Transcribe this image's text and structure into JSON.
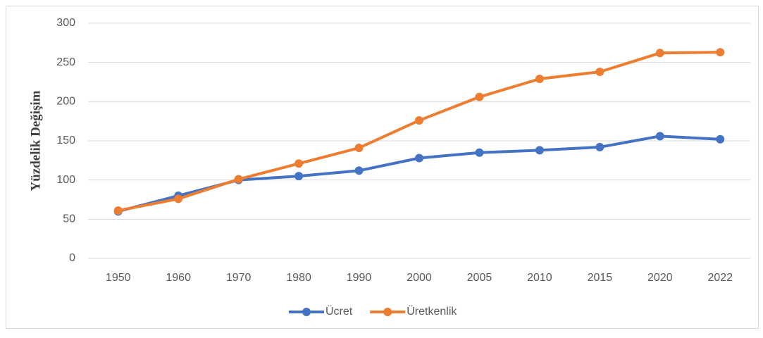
{
  "chart_data": {
    "type": "line",
    "y_label": "Yüzdelik Değişim",
    "categories": [
      "1950",
      "1960",
      "1970",
      "1980",
      "1990",
      "2000",
      "2005",
      "2010",
      "2015",
      "2020",
      "2022"
    ],
    "series": [
      {
        "name": "Ücret",
        "color": "#4472c4",
        "values": [
          60,
          80,
          100,
          105,
          112,
          128,
          135,
          138,
          142,
          156,
          152
        ]
      },
      {
        "name": "Üretkenlik",
        "color": "#ed7d31",
        "values": [
          61,
          76,
          101,
          121,
          141,
          176,
          206,
          229,
          238,
          262,
          263
        ]
      }
    ],
    "ylim": [
      0,
      300
    ],
    "yticks": [
      0,
      50,
      100,
      150,
      200,
      250,
      300
    ],
    "grid": true,
    "legend": "bottom"
  }
}
